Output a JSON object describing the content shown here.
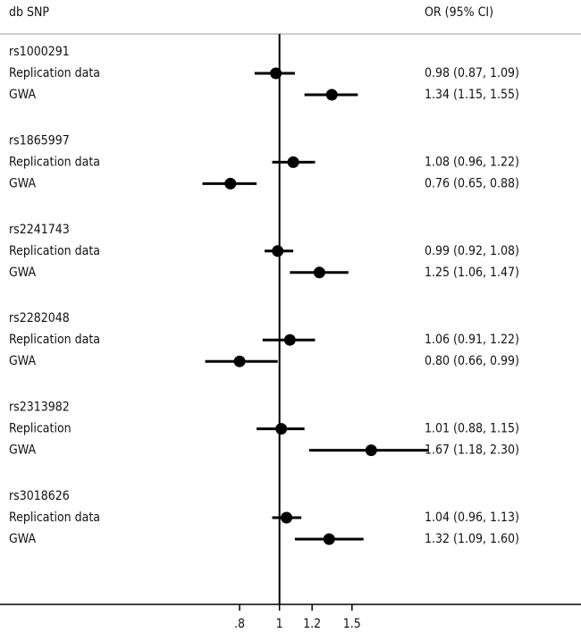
{
  "chart_data": {
    "type": "forest",
    "left_header": "db SNP",
    "right_header": "OR (95% CI)",
    "xscale": "log",
    "xlim": [
      0.5,
      2.5
    ],
    "xticks": [
      {
        "value": 0.8,
        "label": ".8"
      },
      1,
      1.2,
      1.5
    ],
    "reference_line": 1,
    "color": "#000000",
    "groups": [
      {
        "name": "rs1000291",
        "rows": [
          {
            "label": "Replication data",
            "value": 0.98,
            "lo": 0.87,
            "hi": 1.09,
            "value_label": "0.98 (0.87, 1.09)"
          },
          {
            "label": "GWA",
            "value": 1.34,
            "lo": 1.15,
            "hi": 1.55,
            "value_label": "1.34 (1.15, 1.55)"
          }
        ]
      },
      {
        "name": "rs1865997",
        "rows": [
          {
            "label": "Replication data",
            "value": 1.08,
            "lo": 0.96,
            "hi": 1.22,
            "value_label": "1.08 (0.96, 1.22)"
          },
          {
            "label": "GWA",
            "value": 0.76,
            "lo": 0.65,
            "hi": 0.88,
            "value_label": "0.76 (0.65, 0.88)"
          }
        ]
      },
      {
        "name": "rs2241743",
        "rows": [
          {
            "label": "Replication data",
            "value": 0.99,
            "lo": 0.92,
            "hi": 1.08,
            "value_label": "0.99 (0.92, 1.08)"
          },
          {
            "label": "GWA",
            "value": 1.25,
            "lo": 1.06,
            "hi": 1.47,
            "value_label": "1.25 (1.06, 1.47)"
          }
        ]
      },
      {
        "name": "rs2282048",
        "rows": [
          {
            "label": "Replication data",
            "value": 1.06,
            "lo": 0.91,
            "hi": 1.22,
            "value_label": "1.06 (0.91, 1.22)"
          },
          {
            "label": "GWA",
            "value": 0.8,
            "lo": 0.66,
            "hi": 0.99,
            "value_label": "0.80 (0.66, 0.99)"
          }
        ]
      },
      {
        "name": "rs2313982",
        "rows": [
          {
            "label": "Replication",
            "value": 1.01,
            "lo": 0.88,
            "hi": 1.15,
            "value_label": "1.01 (0.88, 1.15)"
          },
          {
            "label": "GWA",
            "value": 1.67,
            "lo": 1.18,
            "hi": 2.3,
            "value_label": "1.67 (1.18, 2.30)"
          }
        ]
      },
      {
        "name": "rs3018626",
        "rows": [
          {
            "label": "Replication data",
            "value": 1.04,
            "lo": 0.96,
            "hi": 1.13,
            "value_label": "1.04 (0.96, 1.13)"
          },
          {
            "label": "GWA",
            "value": 1.32,
            "lo": 1.09,
            "hi": 1.6,
            "value_label": "1.32 (1.09, 1.60)"
          }
        ]
      }
    ]
  }
}
